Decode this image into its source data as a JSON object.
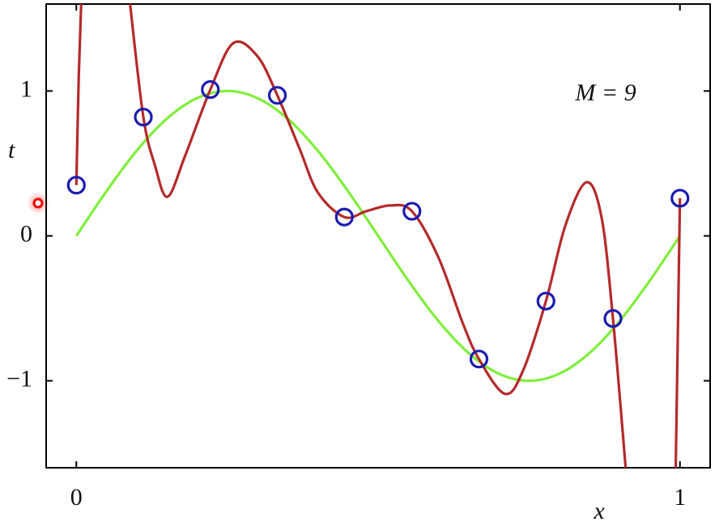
{
  "chart_data": {
    "type": "line",
    "annotation": "M = 9",
    "xlabel": "x",
    "ylabel": "t",
    "xlim": [
      -0.05,
      1.05
    ],
    "ylim": [
      -1.6,
      1.6
    ],
    "xticks": [
      0,
      1
    ],
    "yticks": [
      {
        "value": -1,
        "label": "−1"
      },
      0,
      1
    ],
    "series": [
      {
        "color": "#80ee3c",
        "mode": "line",
        "x": [
          0,
          0.05,
          0.1,
          0.15,
          0.2,
          0.25,
          0.3,
          0.35,
          0.4,
          0.45,
          0.5,
          0.55,
          0.6,
          0.65,
          0.7,
          0.75,
          0.8,
          0.85,
          0.9,
          0.95,
          1
        ],
        "values": [
          0,
          0.309,
          0.588,
          0.809,
          0.951,
          1,
          0.951,
          0.809,
          0.588,
          0.309,
          0,
          -0.309,
          -0.588,
          -0.809,
          -0.951,
          -1,
          -0.951,
          -0.809,
          -0.588,
          -0.309,
          0
        ]
      },
      {
        "color": "#b42a2a",
        "mode": "line",
        "x": [
          0,
          0.004,
          0.008,
          0.05,
          0.089,
          0.111,
          0.13,
          0.151,
          0.18,
          0.222,
          0.26,
          0.3,
          0.333,
          0.37,
          0.4,
          0.444,
          0.48,
          0.52,
          0.556,
          0.6,
          0.64,
          0.667,
          0.71,
          0.74,
          0.778,
          0.81,
          0.845,
          0.87,
          0.889,
          0.91,
          0.95,
          0.993,
          1
        ],
        "values": [
          0.35,
          1.1,
          1.6,
          null,
          1.6,
          0.82,
          0.49,
          0.27,
          0.55,
          1.01,
          1.33,
          1.24,
          0.97,
          0.6,
          0.3,
          0.13,
          0.17,
          0.21,
          0.17,
          -0.15,
          -0.6,
          -0.85,
          -1.09,
          -0.93,
          -0.45,
          0.07,
          0.37,
          0.13,
          -0.57,
          -1.6,
          null,
          -1.6,
          0.26
        ]
      },
      {
        "color": "#1c1cb0",
        "mode": "markers",
        "x": [
          0,
          0.111,
          0.222,
          0.333,
          0.444,
          0.556,
          0.667,
          0.778,
          0.889,
          1
        ],
        "values": [
          0.35,
          0.82,
          1.01,
          0.97,
          0.13,
          0.17,
          -0.85,
          -0.45,
          -0.57,
          0.26
        ]
      }
    ]
  }
}
